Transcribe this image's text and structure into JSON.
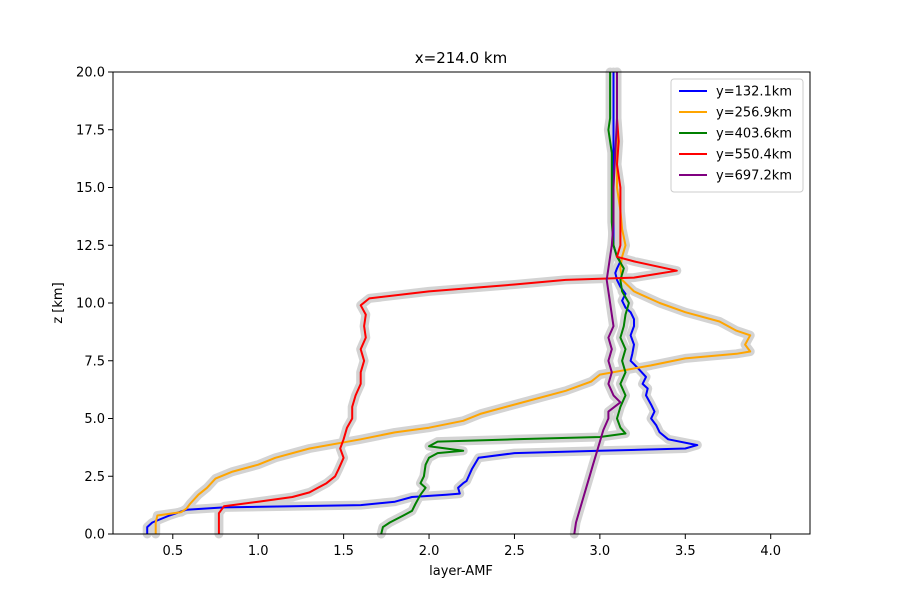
{
  "chart_data": {
    "type": "line",
    "title": "x=214.0 km",
    "xlabel": "layer-AMF",
    "ylabel": "z [km]",
    "xlim": [
      0.15,
      4.23
    ],
    "ylim": [
      0,
      20
    ],
    "xticks": [
      0.5,
      1.0,
      1.5,
      2.0,
      2.5,
      3.0,
      3.5,
      4.0
    ],
    "xtick_labels": [
      "0.5",
      "1.0",
      "1.5",
      "2.0",
      "2.5",
      "3.0",
      "3.5",
      "4.0"
    ],
    "yticks": [
      0,
      2.5,
      5,
      7.5,
      10,
      12.5,
      15,
      17.5,
      20
    ],
    "ytick_labels": [
      "0.0",
      "2.5",
      "5.0",
      "7.5",
      "10.0",
      "12.5",
      "15.0",
      "17.5",
      "20.0"
    ],
    "grid": false,
    "legend_position": "top-right",
    "uncertainty_band": {
      "color": "#d3d3d3"
    },
    "series": [
      {
        "name": "y=132.1km",
        "color": "#0000ff",
        "points": [
          [
            0.35,
            0
          ],
          [
            0.35,
            0.3
          ],
          [
            0.38,
            0.5
          ],
          [
            0.48,
            0.8
          ],
          [
            0.58,
            1.05
          ],
          [
            0.8,
            1.15
          ],
          [
            1.2,
            1.2
          ],
          [
            1.6,
            1.25
          ],
          [
            1.8,
            1.4
          ],
          [
            1.9,
            1.6
          ],
          [
            2.1,
            1.7
          ],
          [
            2.18,
            1.75
          ],
          [
            2.17,
            2.0
          ],
          [
            2.2,
            2.2
          ],
          [
            2.22,
            2.3
          ],
          [
            2.25,
            2.8
          ],
          [
            2.29,
            3.3
          ],
          [
            2.5,
            3.5
          ],
          [
            3.0,
            3.6
          ],
          [
            3.5,
            3.7
          ],
          [
            3.57,
            3.85
          ],
          [
            3.4,
            4.1
          ],
          [
            3.35,
            4.4
          ],
          [
            3.33,
            4.7
          ],
          [
            3.3,
            5.0
          ],
          [
            3.32,
            5.3
          ],
          [
            3.3,
            5.6
          ],
          [
            3.27,
            6.0
          ],
          [
            3.28,
            6.3
          ],
          [
            3.25,
            6.5
          ],
          [
            3.27,
            6.8
          ],
          [
            3.22,
            7.2
          ],
          [
            3.18,
            7.5
          ],
          [
            3.19,
            7.8
          ],
          [
            3.2,
            8.2
          ],
          [
            3.18,
            8.6
          ],
          [
            3.2,
            9.0
          ],
          [
            3.2,
            9.3
          ],
          [
            3.18,
            9.6
          ],
          [
            3.15,
            9.8
          ],
          [
            3.13,
            10.1
          ],
          [
            3.15,
            10.4
          ],
          [
            3.12,
            10.7
          ],
          [
            3.1,
            11.0
          ],
          [
            3.09,
            11.3
          ],
          [
            3.1,
            11.5
          ],
          [
            3.12,
            11.8
          ],
          [
            3.1,
            12.0
          ],
          [
            3.08,
            12.5
          ],
          [
            3.08,
            13.5
          ],
          [
            3.08,
            15.0
          ],
          [
            3.08,
            16.5
          ],
          [
            3.08,
            18.0
          ],
          [
            3.08,
            19.0
          ],
          [
            3.08,
            20.0
          ]
        ]
      },
      {
        "name": "y=256.9km",
        "color": "#ffa500",
        "points": [
          [
            0.4,
            0
          ],
          [
            0.4,
            0.5
          ],
          [
            0.41,
            0.8
          ],
          [
            0.55,
            0.95
          ],
          [
            0.58,
            1.1
          ],
          [
            0.6,
            1.3
          ],
          [
            0.65,
            1.7
          ],
          [
            0.7,
            2.0
          ],
          [
            0.75,
            2.4
          ],
          [
            0.85,
            2.7
          ],
          [
            1.0,
            3.0
          ],
          [
            1.1,
            3.3
          ],
          [
            1.3,
            3.7
          ],
          [
            1.6,
            4.1
          ],
          [
            1.8,
            4.4
          ],
          [
            2.0,
            4.6
          ],
          [
            2.2,
            4.9
          ],
          [
            2.3,
            5.2
          ],
          [
            2.45,
            5.5
          ],
          [
            2.6,
            5.8
          ],
          [
            2.8,
            6.2
          ],
          [
            2.95,
            6.6
          ],
          [
            3.0,
            6.9
          ],
          [
            3.3,
            7.3
          ],
          [
            3.5,
            7.6
          ],
          [
            3.8,
            7.8
          ],
          [
            3.88,
            7.9
          ],
          [
            3.85,
            8.2
          ],
          [
            3.88,
            8.6
          ],
          [
            3.8,
            8.8
          ],
          [
            3.7,
            9.2
          ],
          [
            3.5,
            9.6
          ],
          [
            3.35,
            10.0
          ],
          [
            3.2,
            10.5
          ],
          [
            3.13,
            11.0
          ],
          [
            3.12,
            11.5
          ],
          [
            3.13,
            12.0
          ],
          [
            3.15,
            12.5
          ],
          [
            3.13,
            13.2
          ],
          [
            3.12,
            14.0
          ],
          [
            3.1,
            15.0
          ],
          [
            3.1,
            16.5
          ],
          [
            3.1,
            18.0
          ],
          [
            3.1,
            20.0
          ]
        ]
      },
      {
        "name": "y=403.6km",
        "color": "#008000",
        "points": [
          [
            1.72,
            0
          ],
          [
            1.73,
            0.3
          ],
          [
            1.77,
            0.5
          ],
          [
            1.85,
            0.8
          ],
          [
            1.9,
            1.0
          ],
          [
            1.92,
            1.3
          ],
          [
            1.95,
            1.7
          ],
          [
            1.98,
            2.0
          ],
          [
            1.95,
            2.2
          ],
          [
            1.97,
            2.5
          ],
          [
            1.98,
            3.0
          ],
          [
            2.0,
            3.3
          ],
          [
            2.05,
            3.5
          ],
          [
            2.2,
            3.6
          ],
          [
            2.0,
            3.8
          ],
          [
            2.05,
            4.0
          ],
          [
            2.5,
            4.1
          ],
          [
            3.0,
            4.2
          ],
          [
            3.15,
            4.35
          ],
          [
            3.12,
            4.6
          ],
          [
            3.1,
            5.0
          ],
          [
            3.12,
            5.5
          ],
          [
            3.15,
            6.0
          ],
          [
            3.12,
            6.5
          ],
          [
            3.15,
            7.0
          ],
          [
            3.13,
            7.5
          ],
          [
            3.15,
            8.0
          ],
          [
            3.12,
            8.5
          ],
          [
            3.14,
            9.0
          ],
          [
            3.15,
            9.5
          ],
          [
            3.17,
            10.0
          ],
          [
            3.13,
            10.5
          ],
          [
            3.12,
            11.0
          ],
          [
            3.14,
            11.5
          ],
          [
            3.1,
            12.0
          ],
          [
            3.08,
            12.5
          ],
          [
            3.07,
            13.5
          ],
          [
            3.07,
            15.0
          ],
          [
            3.07,
            16.5
          ],
          [
            3.05,
            17.5
          ],
          [
            3.06,
            18.0
          ],
          [
            3.06,
            19.0
          ],
          [
            3.06,
            20.0
          ]
        ]
      },
      {
        "name": "y=550.4km",
        "color": "#ff0000",
        "points": [
          [
            0.77,
            0
          ],
          [
            0.77,
            0.5
          ],
          [
            0.77,
            0.9
          ],
          [
            0.8,
            1.2
          ],
          [
            1.0,
            1.4
          ],
          [
            1.2,
            1.6
          ],
          [
            1.3,
            1.8
          ],
          [
            1.35,
            2.0
          ],
          [
            1.4,
            2.2
          ],
          [
            1.45,
            2.5
          ],
          [
            1.47,
            2.8
          ],
          [
            1.5,
            3.3
          ],
          [
            1.48,
            3.7
          ],
          [
            1.5,
            4.1
          ],
          [
            1.52,
            4.6
          ],
          [
            1.55,
            5.0
          ],
          [
            1.55,
            5.5
          ],
          [
            1.57,
            6.0
          ],
          [
            1.6,
            6.5
          ],
          [
            1.6,
            7.0
          ],
          [
            1.62,
            7.5
          ],
          [
            1.6,
            8.0
          ],
          [
            1.63,
            8.5
          ],
          [
            1.62,
            9.0
          ],
          [
            1.63,
            9.5
          ],
          [
            1.6,
            9.9
          ],
          [
            1.65,
            10.2
          ],
          [
            2.0,
            10.5
          ],
          [
            2.5,
            10.8
          ],
          [
            2.8,
            11.0
          ],
          [
            3.2,
            11.1
          ],
          [
            3.45,
            11.4
          ],
          [
            3.2,
            11.8
          ],
          [
            3.1,
            12.0
          ],
          [
            3.12,
            12.5
          ],
          [
            3.12,
            13.5
          ],
          [
            3.12,
            15.0
          ],
          [
            3.1,
            16.0
          ],
          [
            3.11,
            17.0
          ],
          [
            3.1,
            18.0
          ],
          [
            3.1,
            19.0
          ],
          [
            3.1,
            20.0
          ]
        ]
      },
      {
        "name": "y=697.2km",
        "color": "#800080",
        "points": [
          [
            2.85,
            0
          ],
          [
            2.86,
            0.5
          ],
          [
            2.88,
            1.0
          ],
          [
            2.9,
            1.5
          ],
          [
            2.92,
            2.0
          ],
          [
            2.94,
            2.5
          ],
          [
            2.96,
            3.0
          ],
          [
            2.98,
            3.5
          ],
          [
            3.0,
            4.0
          ],
          [
            3.02,
            4.5
          ],
          [
            3.05,
            5.0
          ],
          [
            3.05,
            5.3
          ],
          [
            3.12,
            5.7
          ],
          [
            3.08,
            6.0
          ],
          [
            3.05,
            6.5
          ],
          [
            3.07,
            7.0
          ],
          [
            3.05,
            7.5
          ],
          [
            3.07,
            8.0
          ],
          [
            3.05,
            8.5
          ],
          [
            3.08,
            9.0
          ],
          [
            3.07,
            9.5
          ],
          [
            3.06,
            10.0
          ],
          [
            3.05,
            10.5
          ],
          [
            3.04,
            11.0
          ],
          [
            3.05,
            11.5
          ],
          [
            3.06,
            12.0
          ],
          [
            3.07,
            12.5
          ],
          [
            3.08,
            13.5
          ],
          [
            3.08,
            15.0
          ],
          [
            3.09,
            16.5
          ],
          [
            3.1,
            18.0
          ],
          [
            3.1,
            19.0
          ],
          [
            3.1,
            20.0
          ]
        ]
      }
    ]
  }
}
